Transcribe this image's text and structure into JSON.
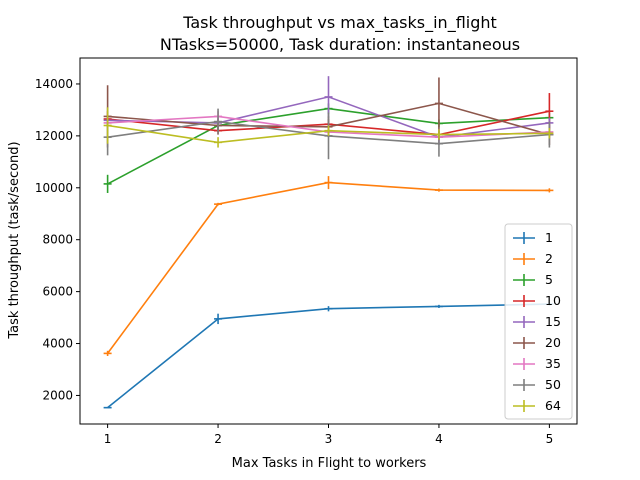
{
  "chart_data": {
    "type": "line",
    "title": "Task throughput vs max_tasks_in_flight",
    "subtitle": "NTasks=50000, Task duration: instantaneous",
    "xlabel": "Max Tasks in Flight to workers",
    "ylabel": "Task throughput (task/second)",
    "xlim": [
      0.75,
      5.25
    ],
    "ylim": [
      900,
      15000
    ],
    "x": [
      1,
      2,
      3,
      4,
      5
    ],
    "xticks": [
      1,
      2,
      3,
      4,
      5
    ],
    "yticks": [
      2000,
      4000,
      6000,
      8000,
      10000,
      12000,
      14000
    ],
    "grid": false,
    "legend_position": "lower-right",
    "series": [
      {
        "name": "1",
        "color": "#1f77b4",
        "values": [
          1530,
          4950,
          5340,
          5430,
          5520
        ],
        "errors": [
          0,
          200,
          100,
          60,
          60
        ]
      },
      {
        "name": "2",
        "color": "#ff7f0e",
        "values": [
          3620,
          9370,
          10200,
          9910,
          9900
        ],
        "errors": [
          100,
          50,
          250,
          60,
          80
        ]
      },
      {
        "name": "5",
        "color": "#2ca02c",
        "values": [
          10150,
          12400,
          13050,
          12480,
          12700
        ],
        "errors": [
          350,
          200,
          200,
          150,
          200
        ]
      },
      {
        "name": "10",
        "color": "#d62728",
        "values": [
          12650,
          12200,
          12450,
          12050,
          12950
        ],
        "errors": [
          300,
          150,
          200,
          200,
          700
        ]
      },
      {
        "name": "15",
        "color": "#9467bd",
        "values": [
          12600,
          12500,
          13500,
          11950,
          12500
        ],
        "errors": [
          200,
          200,
          800,
          300,
          200
        ]
      },
      {
        "name": "20",
        "color": "#8c564b",
        "values": [
          12750,
          12400,
          12350,
          13250,
          12050
        ],
        "errors": [
          1200,
          250,
          400,
          1000,
          400
        ]
      },
      {
        "name": "35",
        "color": "#e377c2",
        "values": [
          12500,
          12750,
          12150,
          11950,
          12150
        ],
        "errors": [
          200,
          200,
          200,
          150,
          150
        ]
      },
      {
        "name": "50",
        "color": "#7f7f7f",
        "values": [
          11950,
          12550,
          12000,
          11700,
          12050
        ],
        "errors": [
          700,
          500,
          900,
          500,
          500
        ]
      },
      {
        "name": "64",
        "color": "#bcbd22",
        "values": [
          12400,
          11750,
          12200,
          12050,
          12100
        ],
        "errors": [
          700,
          200,
          200,
          200,
          200
        ]
      }
    ]
  }
}
